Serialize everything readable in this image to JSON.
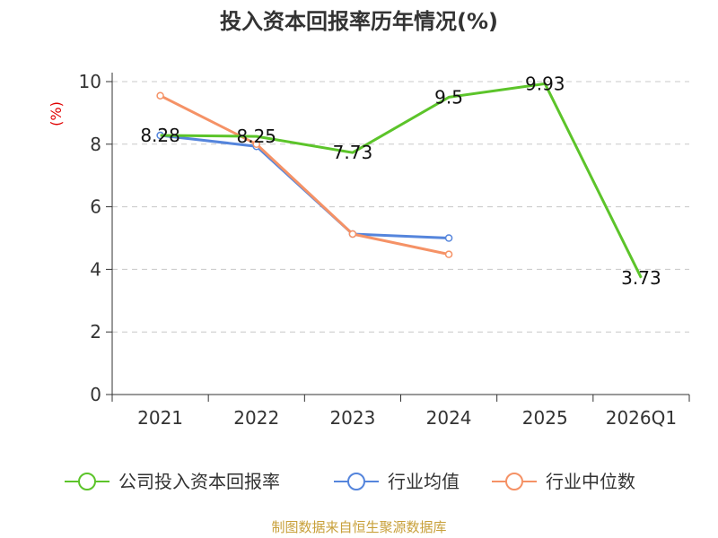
{
  "chart_data": {
    "type": "line",
    "title": "投入资本回报率历年情况(%)",
    "ylabel": "(%)",
    "xlabel": "",
    "ylim": [
      0,
      10
    ],
    "yticks": [
      0,
      2,
      4,
      6,
      8,
      10
    ],
    "grid": true,
    "categories": [
      "2021",
      "2022",
      "2023",
      "2024",
      "2025",
      "2026Q1"
    ],
    "series": [
      {
        "name": "公司投入资本回报率",
        "color": "#5cc42a",
        "values": [
          8.28,
          8.25,
          7.73,
          9.5,
          9.93,
          3.73
        ],
        "labels": [
          "8.28",
          "8.25",
          "7.73",
          "9.5",
          "9.93",
          "3.73"
        ]
      },
      {
        "name": "行业均值",
        "color": "#5585dc",
        "values": [
          8.28,
          7.93,
          5.13,
          5.0,
          null,
          null
        ]
      },
      {
        "name": "行业中位数",
        "color": "#f59266",
        "values": [
          9.55,
          8.0,
          5.13,
          4.48,
          null,
          null
        ]
      }
    ],
    "legend_position": "bottom",
    "source": "制图数据来自恒生聚源数据库"
  }
}
